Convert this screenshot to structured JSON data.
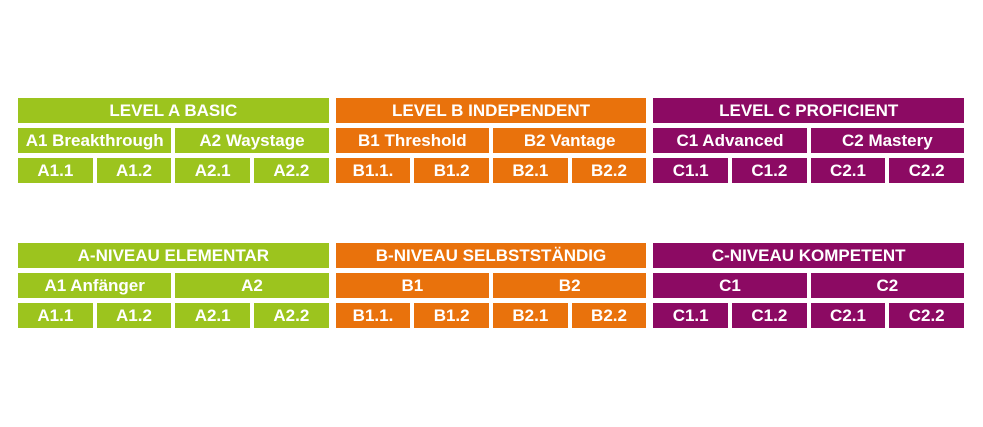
{
  "colors": {
    "level_a": "#9cc41e",
    "level_b": "#e9720c",
    "level_c": "#8c0a63",
    "text": "#ffffff",
    "background": "#ffffff"
  },
  "tables": [
    {
      "name": "english",
      "groups": [
        {
          "header": "LEVEL A BASIC",
          "sublevels": [
            {
              "label": "A1 Breakthrough",
              "cells": [
                "A1.1",
                "A1.2"
              ]
            },
            {
              "label": "A2 Waystage",
              "cells": [
                "A2.1",
                "A2.2"
              ]
            }
          ]
        },
        {
          "header": "LEVEL B INDEPENDENT",
          "sublevels": [
            {
              "label": "B1 Threshold",
              "cells": [
                "B1.1.",
                "B1.2"
              ]
            },
            {
              "label": "B2 Vantage",
              "cells": [
                "B2.1",
                "B2.2"
              ]
            }
          ]
        },
        {
          "header": "LEVEL C PROFICIENT",
          "sublevels": [
            {
              "label": "C1 Advanced",
              "cells": [
                "C1.1",
                "C1.2"
              ]
            },
            {
              "label": "C2 Mastery",
              "cells": [
                "C2.1",
                "C2.2"
              ]
            }
          ]
        }
      ]
    },
    {
      "name": "german",
      "groups": [
        {
          "header": "A-NIVEAU ELEMENTAR",
          "sublevels": [
            {
              "label": "A1 Anfänger",
              "cells": [
                "A1.1",
                "A1.2"
              ]
            },
            {
              "label": "A2",
              "cells": [
                "A2.1",
                "A2.2"
              ]
            }
          ]
        },
        {
          "header": "B-NIVEAU SELBSTSTÄNDIG",
          "sublevels": [
            {
              "label": "B1",
              "cells": [
                "B1.1.",
                "B1.2"
              ]
            },
            {
              "label": "B2",
              "cells": [
                "B2.1",
                "B2.2"
              ]
            }
          ]
        },
        {
          "header": "C-NIVEAU KOMPETENT",
          "sublevels": [
            {
              "label": "C1",
              "cells": [
                "C1.1",
                "C1.2"
              ]
            },
            {
              "label": "C2",
              "cells": [
                "C2.1",
                "C2.2"
              ]
            }
          ]
        }
      ]
    }
  ]
}
